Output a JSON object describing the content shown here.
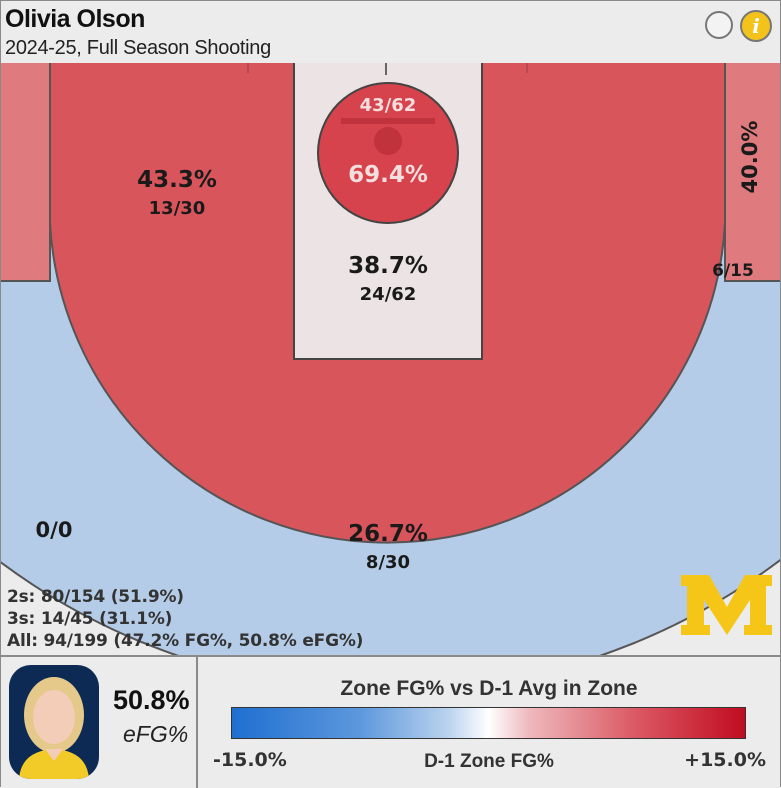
{
  "header": {
    "player_name": "Olivia Olson",
    "subtitle": "2024-25, Full Season Shooting",
    "info_glyph": "i"
  },
  "chart_data": {
    "type": "heatmap",
    "title": "Olivia Olson",
    "subtitle": "2024-25, Full Season Shooting",
    "zones": [
      {
        "zone": "left-corner-3",
        "pct": "",
        "made_att": "",
        "made": null,
        "attempts": null,
        "color": "#df7b7f"
      },
      {
        "zone": "left-mid-range",
        "pct": "43.3%",
        "made_att": "13/30",
        "made": 13,
        "attempts": 30,
        "color": "#d9555c"
      },
      {
        "zone": "rim",
        "pct": "69.4%",
        "made_att": "43/62",
        "made": 43,
        "attempts": 62,
        "color": "#d7434c"
      },
      {
        "zone": "paint",
        "pct": "38.7%",
        "made_att": "24/62",
        "made": 24,
        "attempts": 62,
        "color": "#ece4e4"
      },
      {
        "zone": "right-corner-3",
        "pct": "40.0%",
        "made_att": "6/15",
        "made": 6,
        "attempts": 15,
        "color": "#df7b7f"
      },
      {
        "zone": "above-break-3",
        "pct": "26.7%",
        "made_att": "8/30",
        "made": 8,
        "attempts": 30,
        "color": "#b4cce7"
      },
      {
        "zone": "deep-3",
        "pct": "",
        "made_att": "0/0",
        "made": 0,
        "attempts": 0,
        "color": "#ececec"
      }
    ],
    "legend": {
      "title": "Zone FG% vs D-1 Avg in Zone",
      "min_label": "-15.0%",
      "center_label": "D-1 Zone FG%",
      "max_label": "+15.0%",
      "min_value": -15.0,
      "max_value": 15.0,
      "low_color": "#1f6fd0",
      "mid_color": "#ffffff",
      "high_color": "#c00c20"
    }
  },
  "summary": {
    "twos": "2s: 80/154 (51.9%)",
    "threes": "3s: 14/45 (31.1%)",
    "all": "All: 94/199 (47.2% FG%, 50.8% eFG%)"
  },
  "player_card": {
    "efg_value": "50.8%",
    "efg_label": "eFG%"
  },
  "team_logo": {
    "letter": "M",
    "color": "#f5c518"
  }
}
